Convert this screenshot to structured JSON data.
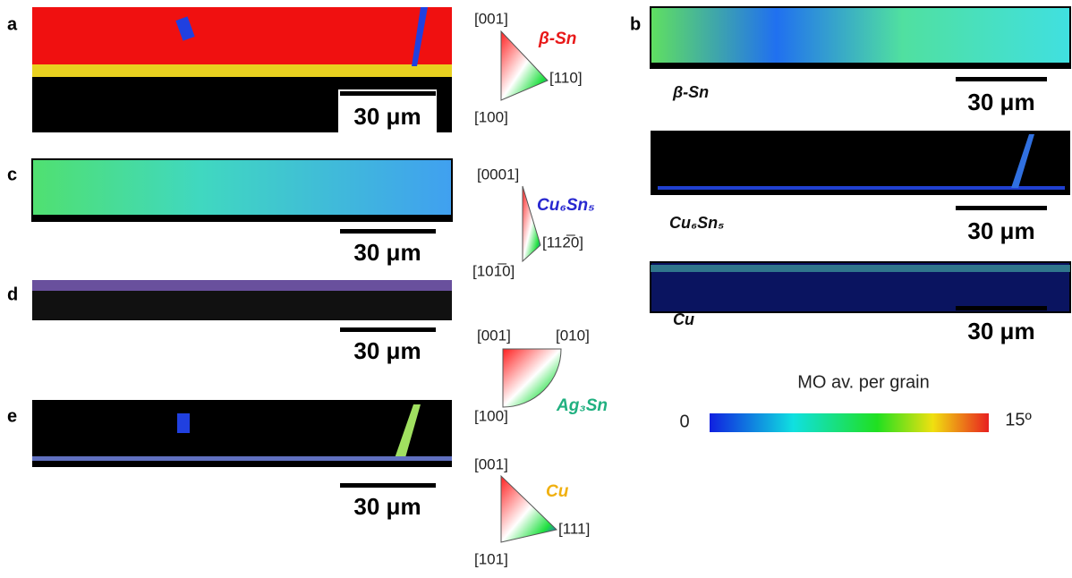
{
  "panels": [
    {
      "label": "a",
      "scale_bar": "30 μm"
    },
    {
      "label": "b"
    },
    {
      "label": "c",
      "scale_bar": "30 μm"
    },
    {
      "label": "d",
      "scale_bar": "30 μm"
    },
    {
      "label": "e",
      "scale_bar": "30 μm"
    }
  ],
  "ipf_keys": [
    {
      "phase": "β-Sn",
      "poles": [
        "[001]",
        "[110]",
        "[100]"
      ]
    },
    {
      "phase": "Cu₆Sn₅",
      "poles": [
        "[0001]",
        "[112̅0]",
        "[101̅0]"
      ]
    },
    {
      "phase": "Ag₃Sn",
      "poles": [
        "[001]",
        "[010]",
        "[100]"
      ]
    },
    {
      "phase": "Cu",
      "poles": [
        "[001]",
        "[111]",
        "[101]"
      ]
    }
  ],
  "misorientation_maps": [
    {
      "phase": "β-Sn",
      "scale_bar": "30 μm"
    },
    {
      "phase": "Cu₆Sn₅",
      "scale_bar": "30 μm"
    },
    {
      "phase": "Cu",
      "scale_bar": "30 μm"
    }
  ],
  "colorbar": {
    "title": "MO av. per grain",
    "min_label": "0",
    "max_label": "15º"
  }
}
